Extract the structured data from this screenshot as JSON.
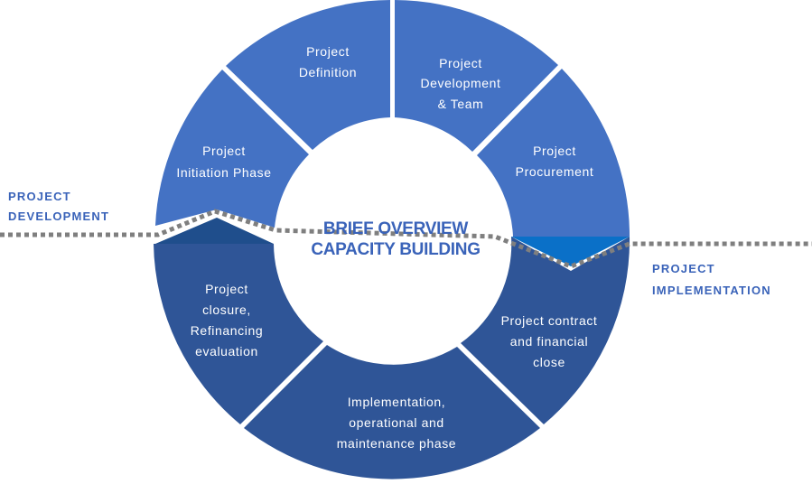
{
  "center_title": {
    "line1": "BRIEF OVERVIEW",
    "line2": "CAPACITY BUILDING"
  },
  "side_labels": {
    "development": [
      "PROJECT",
      "DEVELOPMENT"
    ],
    "implementation": [
      "PROJECT",
      "IMPLEMENTATION"
    ]
  },
  "segments": [
    {
      "lines": [
        "Project",
        "Definition"
      ]
    },
    {
      "lines": [
        "Project",
        "Development",
        "& Team"
      ]
    },
    {
      "lines": [
        "Project",
        "Procurement"
      ]
    },
    {
      "lines": [
        "Project contract",
        "and financial",
        "close"
      ]
    },
    {
      "lines": [
        "Implementation,",
        "operational and",
        "maintenance phase"
      ]
    },
    {
      "lines": [
        "Project",
        "closure,",
        "Refinancing",
        "evaluation"
      ]
    },
    {
      "lines": [
        "Project",
        "Initiation Phase"
      ]
    }
  ],
  "colors": {
    "development_phase": "#4472c4",
    "implementation_phase": "#2f5597",
    "accent_left": "#1f4e8c",
    "accent_right": "#0a70c8",
    "divider": "#7f7f7f",
    "title_text": "#3a63b9"
  }
}
